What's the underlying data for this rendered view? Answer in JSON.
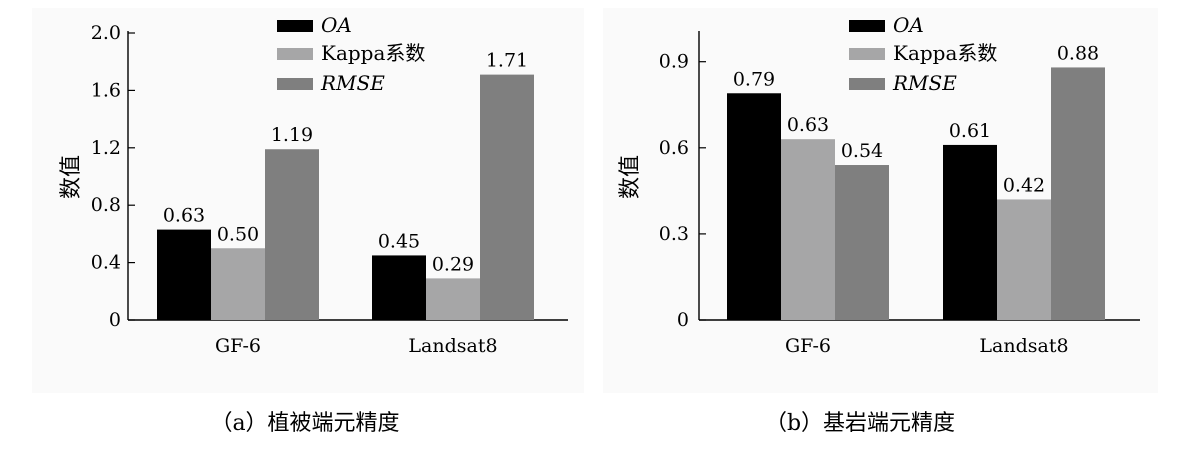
{
  "chart_data": [
    {
      "type": "bar",
      "caption": "（a）植被端元精度",
      "ylabel": "数值",
      "categories": [
        "GF-6",
        "Landsat8"
      ],
      "ylim": [
        0,
        2.0
      ],
      "yticks": [
        "0",
        "0.4",
        "0.8",
        "1.2",
        "1.6",
        "2.0"
      ],
      "ytick_values": [
        0,
        0.4,
        0.8,
        1.2,
        1.6,
        2.0
      ],
      "legend_position": "top-center",
      "series": [
        {
          "name": "OA",
          "italic": true,
          "color": "#000000",
          "values": [
            0.63,
            0.45
          ],
          "labels": [
            "0.63",
            "0.45"
          ]
        },
        {
          "name": "Kappa系数",
          "italic": false,
          "color": "#a6a6a7",
          "values": [
            0.5,
            0.29
          ],
          "labels": [
            "0.50",
            "0.29"
          ]
        },
        {
          "name": "RMSE",
          "italic": true,
          "color": "#7f7f7f",
          "values": [
            1.19,
            1.71
          ],
          "labels": [
            "1.19",
            "1.71"
          ]
        }
      ]
    },
    {
      "type": "bar",
      "caption": "（b）基岩端元精度",
      "ylabel": "数值",
      "categories": [
        "GF-6",
        "Landsat8"
      ],
      "ylim": [
        0,
        1.0
      ],
      "yticks": [
        "0",
        "0.3",
        "0.6",
        "0.9"
      ],
      "ytick_values": [
        0,
        0.3,
        0.6,
        0.9
      ],
      "legend_position": "top-center",
      "series": [
        {
          "name": "OA",
          "italic": true,
          "color": "#000000",
          "values": [
            0.79,
            0.61
          ],
          "labels": [
            "0.79",
            "0.61"
          ]
        },
        {
          "name": "Kappa系数",
          "italic": false,
          "color": "#a6a6a7",
          "values": [
            0.63,
            0.42
          ],
          "labels": [
            "0.63",
            "0.42"
          ]
        },
        {
          "name": "RMSE",
          "italic": true,
          "color": "#7f7f7f",
          "values": [
            0.54,
            0.88
          ],
          "labels": [
            "0.54",
            "0.88"
          ]
        }
      ]
    }
  ]
}
